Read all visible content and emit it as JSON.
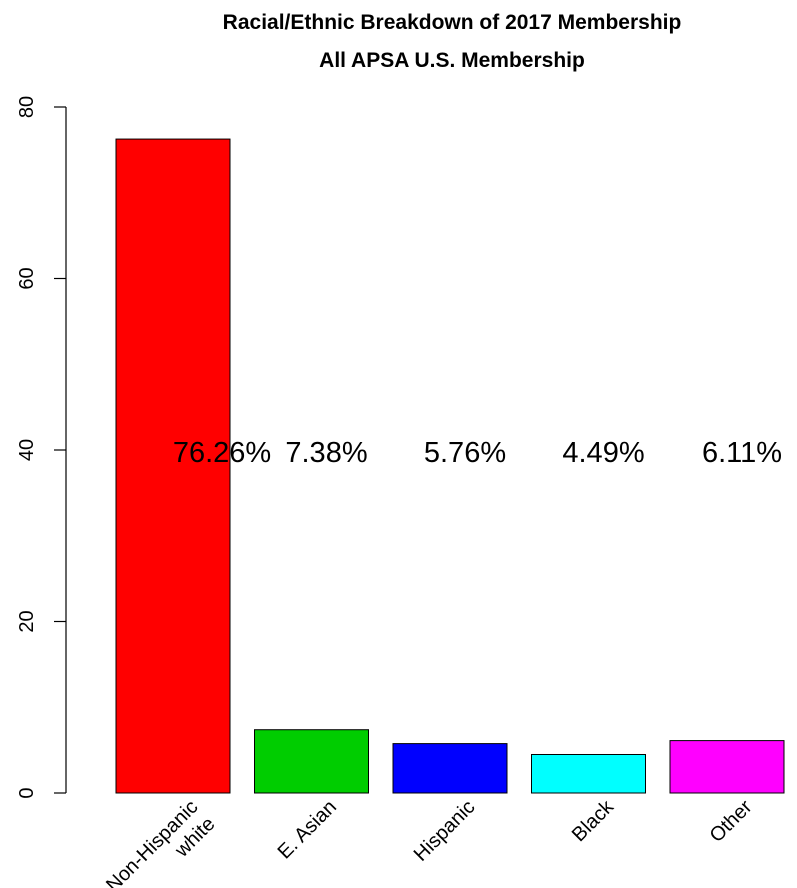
{
  "chart_data": {
    "type": "bar",
    "title": "Racial/Ethnic Breakdown of 2017 Membership",
    "subtitle": "All APSA U.S. Membership",
    "xlabel": "",
    "ylabel": "",
    "ylim": [
      0,
      80
    ],
    "yticks": [
      0,
      20,
      40,
      60,
      80
    ],
    "grid": false,
    "categories": [
      [
        "Non-Hispanic",
        "white"
      ],
      [
        "E. Asian"
      ],
      [
        "Hispanic"
      ],
      [
        "Black"
      ],
      [
        "Other"
      ]
    ],
    "values": [
      76.26,
      7.38,
      5.76,
      4.49,
      6.11
    ],
    "data_labels": [
      "76.26%",
      "7.38%",
      "5.76%",
      "4.49%",
      "6.11%"
    ],
    "colors": [
      "#ff0000",
      "#00cd00",
      "#0000ff",
      "#00ffff",
      "#ff00ff"
    ]
  }
}
